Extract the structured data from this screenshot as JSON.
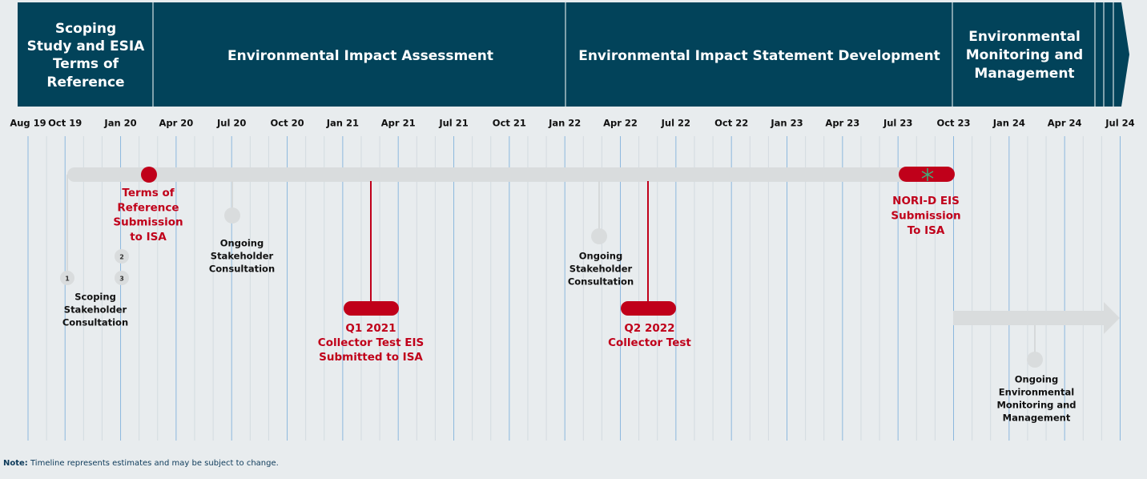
{
  "phases": [
    {
      "lines": [
        "Scoping",
        "Study and ESIA",
        "Terms of",
        "Reference"
      ]
    },
    {
      "lines": [
        "Environmental Impact Assessment"
      ]
    },
    {
      "lines": [
        "Environmental Impact Statement Development"
      ]
    },
    {
      "lines": [
        "Environmental",
        "Monitoring and",
        "Management"
      ]
    }
  ],
  "ticks": [
    "Aug 19",
    "Oct 19",
    "Jan 20",
    "Apr 20",
    "Jul 20",
    "Oct 20",
    "Jan 21",
    "Apr 21",
    "Jul 21",
    "Oct 21",
    "Jan 22",
    "Apr 22",
    "Jul 22",
    "Oct 22",
    "Jan 23",
    "Apr 23",
    "Jul 23",
    "Oct 23",
    "Jan 24",
    "Apr 24",
    "Jul 24"
  ],
  "events": [
    {
      "lines": [
        "Scoping",
        "Stakeholder",
        "Consultation"
      ],
      "markers": [
        "1",
        "2",
        "3"
      ]
    },
    {
      "lines": [
        "Terms of",
        "Reference",
        "Submission",
        "to ISA"
      ]
    },
    {
      "lines": [
        "Ongoing",
        "Stakeholder",
        "Consultation"
      ]
    },
    {
      "lines": [
        "Q1 2021",
        "Collector Test EIS",
        "Submitted to ISA"
      ]
    },
    {
      "lines": [
        "Ongoing",
        "Stakeholder",
        "Consultation"
      ]
    },
    {
      "lines": [
        "Q2 2022",
        "Collector Test"
      ]
    },
    {
      "lines": [
        "NORI-D EIS",
        "Submission",
        "To ISA"
      ]
    },
    {
      "lines": [
        "Ongoing",
        "Environmental",
        "Monitoring and",
        "Management"
      ]
    }
  ],
  "note": {
    "label": "Note:",
    "text": "Timeline represents estimates and may be subject to change."
  }
}
